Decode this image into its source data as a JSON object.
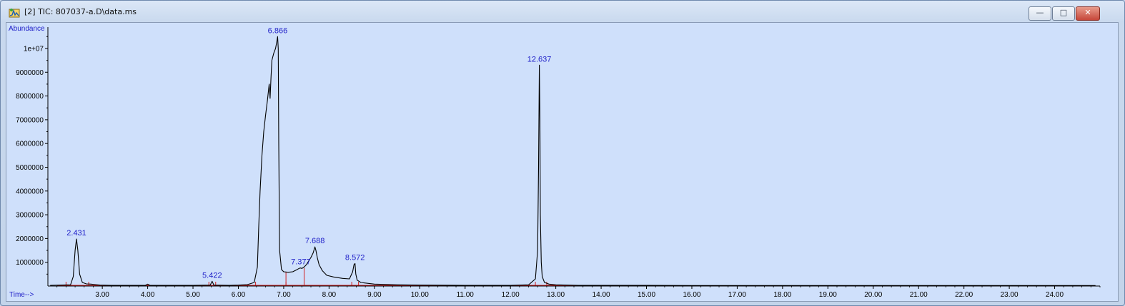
{
  "window": {
    "title": "[2] TIC: 807037-a.D\\data.ms",
    "icon": "chromatogram-app-icon",
    "buttons": [
      {
        "name": "minimize-button",
        "glyph": "—"
      },
      {
        "name": "maximize-button",
        "glyph": "□"
      },
      {
        "name": "close-button",
        "glyph": "✕"
      }
    ],
    "colors": {
      "plot_background": "#cfe0fb",
      "trace": "#000000",
      "label": "#2020c8",
      "baseline": "#d02020"
    }
  },
  "chart_data": {
    "type": "line",
    "title": "",
    "xlabel": "Time-->",
    "ylabel": "Abundance",
    "xlim": [
      1.8,
      25.0
    ],
    "ylim": [
      0,
      10900000
    ],
    "grid": false,
    "legend": "none",
    "x_ticks": [
      "3.00",
      "4.00",
      "5.00",
      "6.00",
      "7.00",
      "8.00",
      "9.00",
      "10.00",
      "11.00",
      "12.00",
      "13.00",
      "14.00",
      "15.00",
      "16.00",
      "17.00",
      "18.00",
      "19.00",
      "20.00",
      "21.00",
      "22.00",
      "23.00",
      "24.00"
    ],
    "x_tick_values": [
      3,
      4,
      5,
      6,
      7,
      8,
      9,
      10,
      11,
      12,
      13,
      14,
      15,
      16,
      17,
      18,
      19,
      20,
      21,
      22,
      23,
      24
    ],
    "y_ticks": [
      "1000000",
      "2000000",
      "3000000",
      "4000000",
      "5000000",
      "6000000",
      "7000000",
      "8000000",
      "9000000",
      "1e+07"
    ],
    "y_tick_values": [
      1000000,
      2000000,
      3000000,
      4000000,
      5000000,
      6000000,
      7000000,
      8000000,
      9000000,
      10000000
    ],
    "series": [
      {
        "values_note": "TIC",
        "x": [
          1.85,
          2.3,
          2.36,
          2.4,
          2.431,
          2.46,
          2.5,
          2.56,
          2.65,
          2.75,
          2.85,
          2.95,
          3.2,
          3.6,
          3.95,
          4.0,
          4.05,
          4.5,
          5.0,
          5.38,
          5.422,
          5.46,
          5.8,
          6.0,
          6.2,
          6.35,
          6.42,
          6.45,
          6.48,
          6.52,
          6.56,
          6.6,
          6.64,
          6.68,
          6.7,
          6.72,
          6.74,
          6.78,
          6.82,
          6.85,
          6.866,
          6.88,
          6.89,
          6.91,
          6.95,
          7.0,
          7.1,
          7.2,
          7.3,
          7.35,
          7.377,
          7.4,
          7.45,
          7.5,
          7.55,
          7.6,
          7.65,
          7.688,
          7.71,
          7.74,
          7.78,
          7.85,
          7.95,
          8.1,
          8.3,
          8.45,
          8.52,
          8.55,
          8.572,
          8.59,
          8.62,
          8.7,
          9.0,
          9.5,
          10.0,
          11.0,
          12.0,
          12.4,
          12.55,
          12.6,
          12.62,
          12.637,
          12.65,
          12.66,
          12.68,
          12.7,
          12.75,
          12.85,
          13.0,
          13.5,
          14.0,
          15.0,
          16.0,
          18.0,
          20.0,
          22.0,
          24.0,
          24.9
        ],
        "values": [
          30000,
          50000,
          400000,
          1500000,
          1980000,
          1500000,
          500000,
          150000,
          90000,
          80000,
          60000,
          40000,
          30000,
          30000,
          30000,
          80000,
          30000,
          30000,
          30000,
          40000,
          200000,
          40000,
          30000,
          40000,
          60000,
          150000,
          800000,
          2500000,
          4000000,
          5500000,
          6500000,
          7200000,
          7800000,
          8500000,
          7900000,
          8800000,
          9500000,
          9800000,
          10000000,
          10300000,
          10500000,
          10000000,
          6000000,
          1500000,
          700000,
          600000,
          580000,
          600000,
          700000,
          750000,
          760000,
          740000,
          800000,
          900000,
          1050000,
          1200000,
          1400000,
          1650000,
          1500000,
          1200000,
          900000,
          650000,
          450000,
          380000,
          320000,
          300000,
          600000,
          900000,
          950000,
          500000,
          250000,
          150000,
          80000,
          50000,
          40000,
          30000,
          30000,
          50000,
          300000,
          1500000,
          5000000,
          9300000,
          7000000,
          3000000,
          1000000,
          400000,
          150000,
          80000,
          50000,
          30000,
          30000,
          30000,
          20000,
          20000,
          20000,
          20000,
          20000,
          20000
        ]
      }
    ],
    "peak_labels": [
      {
        "x": 2.431,
        "y": 1980000,
        "text": "2.431"
      },
      {
        "x": 5.422,
        "y": 200000,
        "text": "5.422"
      },
      {
        "x": 6.866,
        "y": 10500000,
        "text": "6.866"
      },
      {
        "x": 7.377,
        "y": 760000,
        "text": "7.377"
      },
      {
        "x": 7.688,
        "y": 1650000,
        "text": "7.688"
      },
      {
        "x": 8.572,
        "y": 950000,
        "text": "8.572"
      },
      {
        "x": 12.637,
        "y": 9300000,
        "text": "12.637"
      }
    ],
    "integration_marks": [
      2.2,
      2.7,
      5.35,
      5.5,
      6.38,
      7.05,
      7.45,
      8.5,
      8.65,
      12.55,
      12.8
    ]
  }
}
